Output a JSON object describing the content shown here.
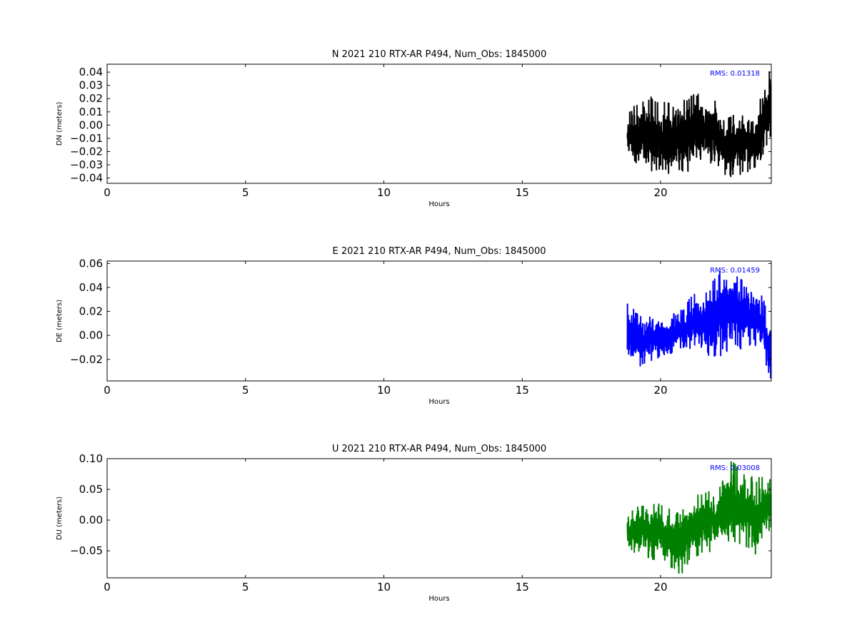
{
  "figure": {
    "background": "#ffffff"
  },
  "chart_data": [
    {
      "type": "line",
      "title": "N 2021 210 RTX-AR  P494, Num_Obs: 1845000",
      "xlabel": "Hours",
      "ylabel": "DN (meters)",
      "xlim": [
        0,
        24
      ],
      "ylim": [
        -0.044,
        0.046
      ],
      "xticks": [
        0,
        5,
        10,
        15,
        20
      ],
      "yticks": [
        -0.04,
        -0.03,
        -0.02,
        -0.01,
        0.0,
        0.01,
        0.02,
        0.03,
        0.04
      ],
      "annotation": "RMS:  0.01318",
      "annotation_color": "#0000ff",
      "grid": false,
      "series": [
        {
          "color": "#000000",
          "x_start": 18.8,
          "x_end": 24.0,
          "envelope": {
            "x": [
              18.8,
              19.2,
              19.6,
              20.0,
              20.4,
              20.8,
              21.2,
              21.6,
              22.0,
              22.1,
              22.4,
              22.8,
              23.2,
              23.5,
              23.8,
              24.0
            ],
            "low": [
              -0.026,
              -0.031,
              -0.035,
              -0.034,
              -0.038,
              -0.035,
              -0.036,
              -0.03,
              -0.028,
              -0.032,
              -0.04,
              -0.038,
              -0.035,
              -0.032,
              -0.018,
              -0.01
            ],
            "high": [
              0.01,
              0.018,
              0.022,
              0.016,
              0.02,
              0.018,
              0.025,
              0.022,
              0.018,
              0.004,
              0.006,
              0.012,
              0.012,
              0.016,
              0.03,
              0.046
            ]
          }
        }
      ]
    },
    {
      "type": "line",
      "title": "E 2021 210 RTX-AR  P494, Num_Obs: 1845000",
      "xlabel": "Hours",
      "ylabel": "DE (meters)",
      "xlim": [
        0,
        24
      ],
      "ylim": [
        -0.038,
        0.062
      ],
      "xticks": [
        0,
        5,
        10,
        15,
        20
      ],
      "yticks": [
        -0.02,
        0.0,
        0.02,
        0.04,
        0.06
      ],
      "annotation": "RMS:  0.01459",
      "annotation_color": "#0000ff",
      "grid": false,
      "series": [
        {
          "color": "#0000ff",
          "x_start": 18.8,
          "x_end": 24.0,
          "envelope": {
            "x": [
              18.8,
              19.2,
              19.6,
              20.0,
              20.4,
              20.8,
              21.2,
              21.6,
              22.0,
              22.3,
              22.6,
              23.0,
              23.4,
              23.7,
              24.0
            ],
            "low": [
              -0.03,
              -0.027,
              -0.022,
              -0.018,
              -0.015,
              -0.01,
              -0.012,
              -0.016,
              -0.02,
              -0.018,
              -0.01,
              -0.012,
              -0.008,
              -0.02,
              -0.038
            ],
            "high": [
              0.029,
              0.018,
              0.016,
              0.01,
              0.018,
              0.022,
              0.036,
              0.042,
              0.048,
              0.062,
              0.055,
              0.045,
              0.038,
              0.032,
              0.004
            ]
          }
        }
      ]
    },
    {
      "type": "line",
      "title": "U 2021 210 RTX-AR  P494, Num_Obs: 1845000",
      "xlabel": "Hours",
      "ylabel": "DU (meters)",
      "xlim": [
        0,
        24
      ],
      "ylim": [
        -0.094,
        0.1
      ],
      "xticks": [
        0,
        5,
        10,
        15,
        20
      ],
      "yticks": [
        -0.05,
        0.0,
        0.05,
        0.1
      ],
      "annotation": "RMS:  0.03008",
      "annotation_color": "#0000ff",
      "grid": false,
      "series": [
        {
          "color": "#008000",
          "x_start": 18.8,
          "x_end": 24.0,
          "envelope": {
            "x": [
              18.8,
              19.2,
              19.6,
              20.0,
              20.4,
              20.7,
              21.0,
              21.4,
              21.8,
              22.2,
              22.6,
              23.0,
              23.4,
              23.7,
              24.0
            ],
            "low": [
              -0.045,
              -0.058,
              -0.062,
              -0.07,
              -0.078,
              -0.092,
              -0.07,
              -0.06,
              -0.055,
              -0.045,
              -0.035,
              -0.04,
              -0.058,
              -0.045,
              -0.01
            ],
            "high": [
              0.008,
              0.025,
              0.03,
              0.028,
              0.018,
              0.01,
              0.03,
              0.045,
              0.048,
              0.06,
              0.1,
              0.08,
              0.07,
              0.072,
              0.065
            ]
          }
        }
      ]
    }
  ]
}
